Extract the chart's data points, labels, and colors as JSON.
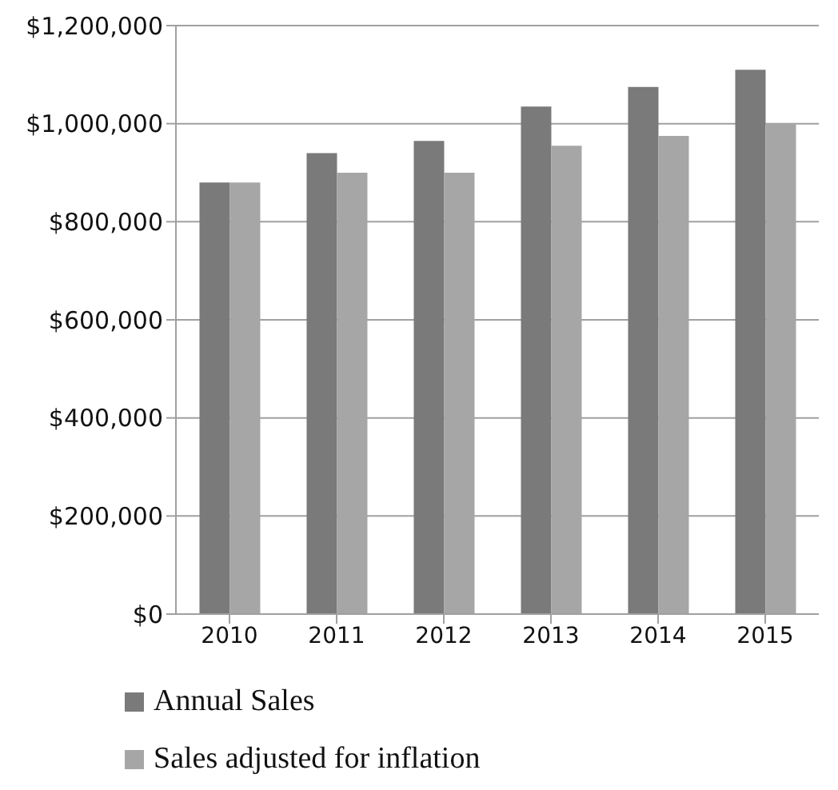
{
  "chart_data": {
    "type": "bar",
    "categories": [
      "2010",
      "2011",
      "2012",
      "2013",
      "2014",
      "2015"
    ],
    "series": [
      {
        "name": "Annual Sales",
        "color": "#7a7a7a",
        "values": [
          880000,
          940000,
          965000,
          1035000,
          1075000,
          1110000
        ]
      },
      {
        "name": "Sales adjusted for inflation",
        "color": "#a6a6a6",
        "values": [
          880000,
          900000,
          900000,
          955000,
          975000,
          1000000
        ]
      }
    ],
    "ylim": [
      0,
      1200000
    ],
    "yticks": [
      {
        "value": 0,
        "label": "$0"
      },
      {
        "value": 200000,
        "label": "$200,000"
      },
      {
        "value": 400000,
        "label": "$400,000"
      },
      {
        "value": 600000,
        "label": "$600,000"
      },
      {
        "value": 800000,
        "label": "$800,000"
      },
      {
        "value": 1000000,
        "label": "$1,000,000"
      },
      {
        "value": 1200000,
        "label": "$1,200,000"
      }
    ],
    "grid": "y",
    "legend": "bottom"
  }
}
